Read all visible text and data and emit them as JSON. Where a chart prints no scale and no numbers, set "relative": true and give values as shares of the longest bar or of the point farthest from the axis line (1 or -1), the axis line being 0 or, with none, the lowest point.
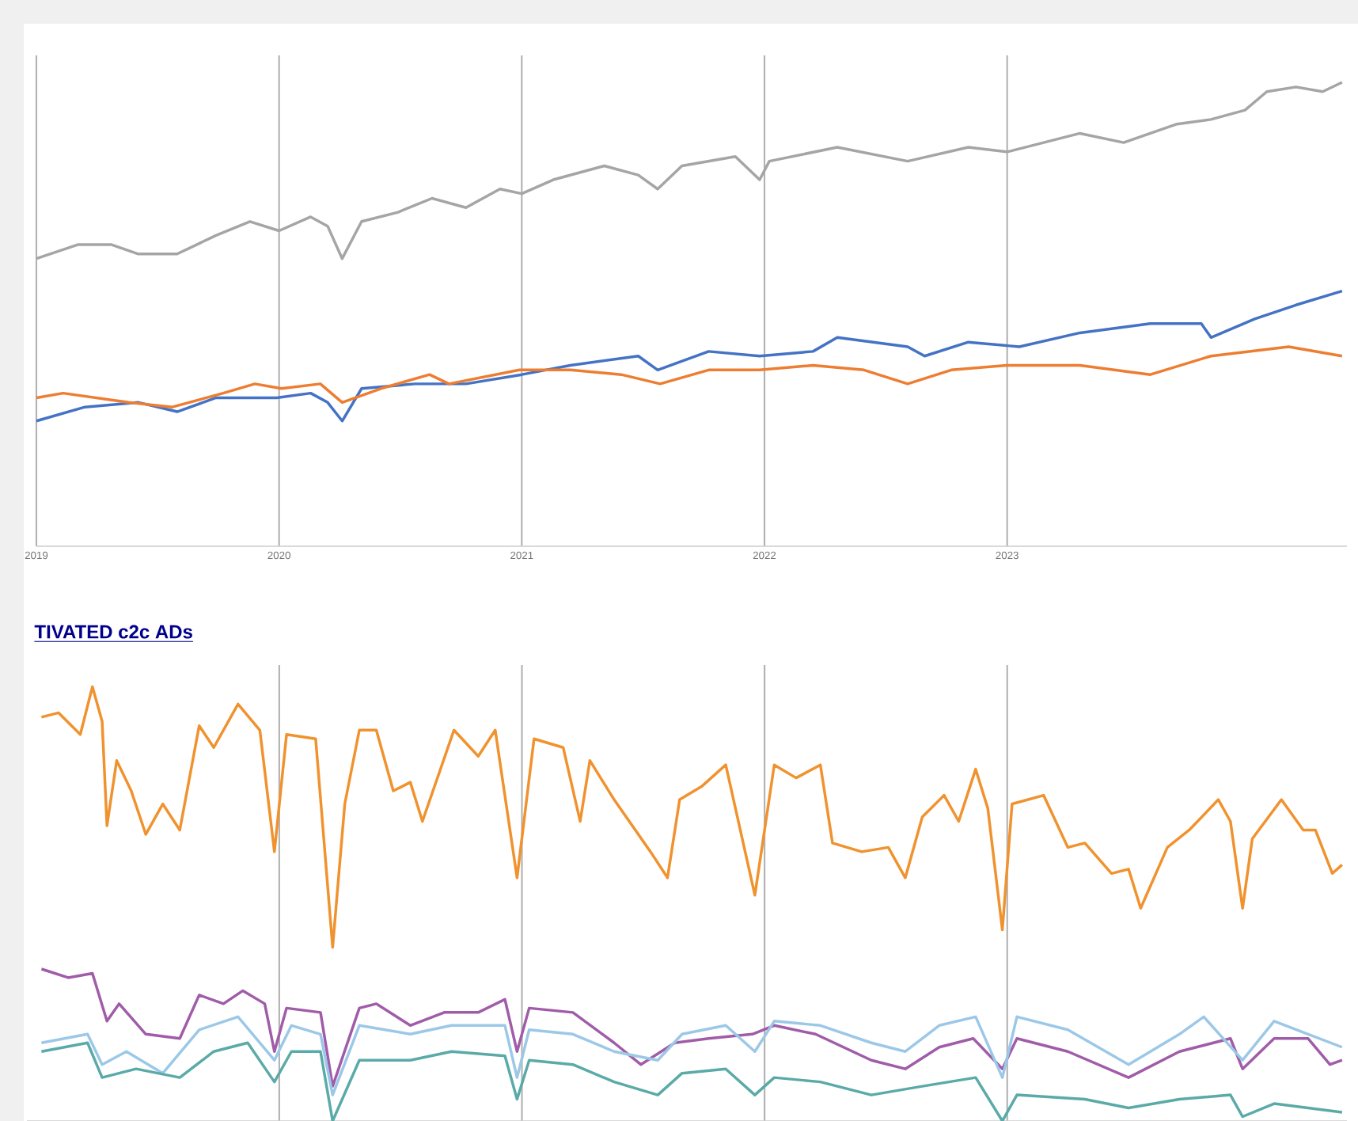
{
  "chart_data": [
    {
      "type": "line",
      "relative": true,
      "grid": "x",
      "tick_labels": "x",
      "xlim": [
        2019,
        2024.4
      ],
      "xticks": [
        2019,
        2020,
        2021,
        2022,
        2023
      ],
      "series": [
        {
          "color": "#a5a5a5",
          "x": [
            2019.0,
            2019.17,
            2019.31,
            2019.42,
            2019.58,
            2019.74,
            2019.88,
            2020.0,
            2020.13,
            2020.2,
            2020.26,
            2020.34,
            2020.49,
            2020.63,
            2020.77,
            2020.91,
            2021.0,
            2021.13,
            2021.34,
            2021.48,
            2021.56,
            2021.66,
            2021.88,
            2021.98,
            2022.02,
            2022.3,
            2022.59,
            2022.84,
            2023.0,
            2023.3,
            2023.48,
            2023.7,
            2023.84,
            2023.98,
            2024.07,
            2024.19,
            2024.3,
            2024.38
          ],
          "values": [
            0.62,
            0.65,
            0.65,
            0.63,
            0.63,
            0.67,
            0.7,
            0.68,
            0.71,
            0.69,
            0.62,
            0.7,
            0.72,
            0.75,
            0.73,
            0.77,
            0.76,
            0.79,
            0.82,
            0.8,
            0.77,
            0.82,
            0.84,
            0.79,
            0.83,
            0.86,
            0.83,
            0.86,
            0.85,
            0.89,
            0.87,
            0.91,
            0.92,
            0.94,
            0.98,
            0.99,
            0.98,
            1.0
          ]
        },
        {
          "color": "#4472c4",
          "x": [
            2019.0,
            2019.2,
            2019.42,
            2019.58,
            2019.74,
            2019.99,
            2020.13,
            2020.2,
            2020.26,
            2020.34,
            2020.56,
            2020.77,
            2021.0,
            2021.2,
            2021.48,
            2021.56,
            2021.77,
            2021.98,
            2022.2,
            2022.3,
            2022.59,
            2022.66,
            2022.84,
            2023.05,
            2023.3,
            2023.59,
            2023.8,
            2023.84,
            2024.02,
            2024.19,
            2024.38
          ],
          "values": [
            0.27,
            0.3,
            0.31,
            0.29,
            0.32,
            0.32,
            0.33,
            0.31,
            0.27,
            0.34,
            0.35,
            0.35,
            0.37,
            0.39,
            0.41,
            0.38,
            0.42,
            0.41,
            0.42,
            0.45,
            0.43,
            0.41,
            0.44,
            0.43,
            0.46,
            0.48,
            0.48,
            0.45,
            0.49,
            0.52,
            0.55
          ]
        },
        {
          "color": "#ed7d31",
          "x": [
            2019.0,
            2019.11,
            2019.38,
            2019.56,
            2019.77,
            2019.9,
            2020.01,
            2020.17,
            2020.26,
            2020.42,
            2020.62,
            2020.7,
            2020.99,
            2021.2,
            2021.41,
            2021.57,
            2021.77,
            2021.98,
            2022.2,
            2022.41,
            2022.59,
            2022.77,
            2023.0,
            2023.3,
            2023.59,
            2023.84,
            2024.16,
            2024.38
          ],
          "values": [
            0.32,
            0.33,
            0.31,
            0.3,
            0.33,
            0.35,
            0.34,
            0.35,
            0.31,
            0.34,
            0.37,
            0.35,
            0.38,
            0.38,
            0.37,
            0.35,
            0.38,
            0.38,
            0.39,
            0.38,
            0.35,
            0.38,
            0.39,
            0.39,
            0.37,
            0.41,
            0.43,
            0.41
          ]
        }
      ]
    },
    {
      "type": "line",
      "relative": true,
      "grid": "x",
      "tick_labels": false,
      "title": "TIVATED c2c ADs",
      "xlim": [
        2018.96,
        2024.4
      ],
      "xticks": [
        2020,
        2021,
        2022,
        2023
      ],
      "series": [
        {
          "color": "#f0922e",
          "x": [
            2019.02,
            2019.09,
            2019.18,
            2019.23,
            2019.27,
            2019.29,
            2019.33,
            2019.39,
            2019.45,
            2019.52,
            2019.59,
            2019.67,
            2019.73,
            2019.83,
            2019.92,
            2019.98,
            2020.03,
            2020.15,
            2020.22,
            2020.27,
            2020.33,
            2020.4,
            2020.47,
            2020.54,
            2020.59,
            2020.72,
            2020.82,
            2020.89,
            2020.98,
            2021.05,
            2021.17,
            2021.24,
            2021.28,
            2021.38,
            2021.53,
            2021.6,
            2021.65,
            2021.74,
            2021.84,
            2021.96,
            2022.04,
            2022.13,
            2022.23,
            2022.28,
            2022.4,
            2022.51,
            2022.58,
            2022.65,
            2022.74,
            2022.8,
            2022.87,
            2022.92,
            2022.98,
            2023.02,
            2023.15,
            2023.25,
            2023.32,
            2023.43,
            2023.5,
            2023.55,
            2023.66,
            2023.75,
            2023.87,
            2023.92,
            2023.97,
            2024.01,
            2024.13,
            2024.22,
            2024.27,
            2024.34,
            2024.38
          ],
          "values": [
            0.93,
            0.94,
            0.89,
            1.0,
            0.92,
            0.68,
            0.83,
            0.76,
            0.66,
            0.73,
            0.67,
            0.91,
            0.86,
            0.96,
            0.9,
            0.62,
            0.89,
            0.88,
            0.4,
            0.73,
            0.9,
            0.9,
            0.76,
            0.78,
            0.69,
            0.9,
            0.84,
            0.9,
            0.56,
            0.88,
            0.86,
            0.69,
            0.83,
            0.74,
            0.62,
            0.56,
            0.74,
            0.77,
            0.82,
            0.52,
            0.82,
            0.79,
            0.82,
            0.64,
            0.62,
            0.63,
            0.56,
            0.7,
            0.75,
            0.69,
            0.81,
            0.72,
            0.44,
            0.73,
            0.75,
            0.63,
            0.64,
            0.57,
            0.58,
            0.49,
            0.63,
            0.67,
            0.74,
            0.69,
            0.49,
            0.65,
            0.74,
            0.67,
            0.67,
            0.57,
            0.59
          ]
        },
        {
          "color": "#a05ca8",
          "x": [
            2019.02,
            2019.13,
            2019.23,
            2019.29,
            2019.34,
            2019.45,
            2019.59,
            2019.67,
            2019.77,
            2019.85,
            2019.94,
            2019.98,
            2020.03,
            2020.17,
            2020.22,
            2020.33,
            2020.4,
            2020.54,
            2020.68,
            2020.82,
            2020.93,
            2020.98,
            2021.03,
            2021.21,
            2021.38,
            2021.49,
            2021.63,
            2021.77,
            2021.95,
            2022.04,
            2022.21,
            2022.44,
            2022.58,
            2022.72,
            2022.86,
            2022.98,
            2023.04,
            2023.25,
            2023.5,
            2023.71,
            2023.92,
            2023.97,
            2024.1,
            2024.24,
            2024.33,
            2024.38
          ],
          "values": [
            0.35,
            0.33,
            0.34,
            0.23,
            0.27,
            0.2,
            0.19,
            0.29,
            0.27,
            0.3,
            0.27,
            0.16,
            0.26,
            0.25,
            0.08,
            0.26,
            0.27,
            0.22,
            0.25,
            0.25,
            0.28,
            0.16,
            0.26,
            0.25,
            0.18,
            0.13,
            0.18,
            0.19,
            0.2,
            0.22,
            0.2,
            0.14,
            0.12,
            0.17,
            0.19,
            0.12,
            0.19,
            0.16,
            0.1,
            0.16,
            0.19,
            0.12,
            0.19,
            0.19,
            0.13,
            0.14
          ]
        },
        {
          "color": "#9cc8e8",
          "x": [
            2019.02,
            2019.21,
            2019.27,
            2019.37,
            2019.52,
            2019.67,
            2019.83,
            2019.98,
            2020.05,
            2020.17,
            2020.22,
            2020.33,
            2020.54,
            2020.71,
            2020.93,
            2020.98,
            2021.03,
            2021.21,
            2021.38,
            2021.56,
            2021.66,
            2021.84,
            2021.96,
            2022.04,
            2022.23,
            2022.44,
            2022.58,
            2022.72,
            2022.87,
            2022.98,
            2023.04,
            2023.25,
            2023.5,
            2023.71,
            2023.81,
            2023.97,
            2024.1,
            2024.24,
            2024.38
          ],
          "values": [
            0.18,
            0.2,
            0.13,
            0.16,
            0.11,
            0.21,
            0.24,
            0.14,
            0.22,
            0.2,
            0.06,
            0.22,
            0.2,
            0.22,
            0.22,
            0.1,
            0.21,
            0.2,
            0.16,
            0.14,
            0.2,
            0.22,
            0.16,
            0.23,
            0.22,
            0.18,
            0.16,
            0.22,
            0.24,
            0.1,
            0.24,
            0.21,
            0.13,
            0.2,
            0.24,
            0.14,
            0.23,
            0.2,
            0.17
          ]
        },
        {
          "color": "#5aaaa8",
          "x": [
            2019.02,
            2019.21,
            2019.27,
            2019.41,
            2019.59,
            2019.73,
            2019.87,
            2019.98,
            2020.05,
            2020.17,
            2020.22,
            2020.33,
            2020.54,
            2020.71,
            2020.93,
            2020.98,
            2021.03,
            2021.21,
            2021.38,
            2021.56,
            2021.66,
            2021.84,
            2021.96,
            2022.04,
            2022.23,
            2022.44,
            2022.65,
            2022.87,
            2022.98,
            2023.04,
            2023.32,
            2023.5,
            2023.71,
            2023.92,
            2023.97,
            2024.1,
            2024.38
          ],
          "values": [
            0.16,
            0.18,
            0.1,
            0.12,
            0.1,
            0.16,
            0.18,
            0.09,
            0.16,
            0.16,
            0.0,
            0.14,
            0.14,
            0.16,
            0.15,
            0.05,
            0.14,
            0.13,
            0.09,
            0.06,
            0.11,
            0.12,
            0.06,
            0.1,
            0.09,
            0.06,
            0.08,
            0.1,
            0.0,
            0.06,
            0.05,
            0.03,
            0.05,
            0.06,
            0.01,
            0.04,
            0.02
          ]
        }
      ]
    }
  ]
}
